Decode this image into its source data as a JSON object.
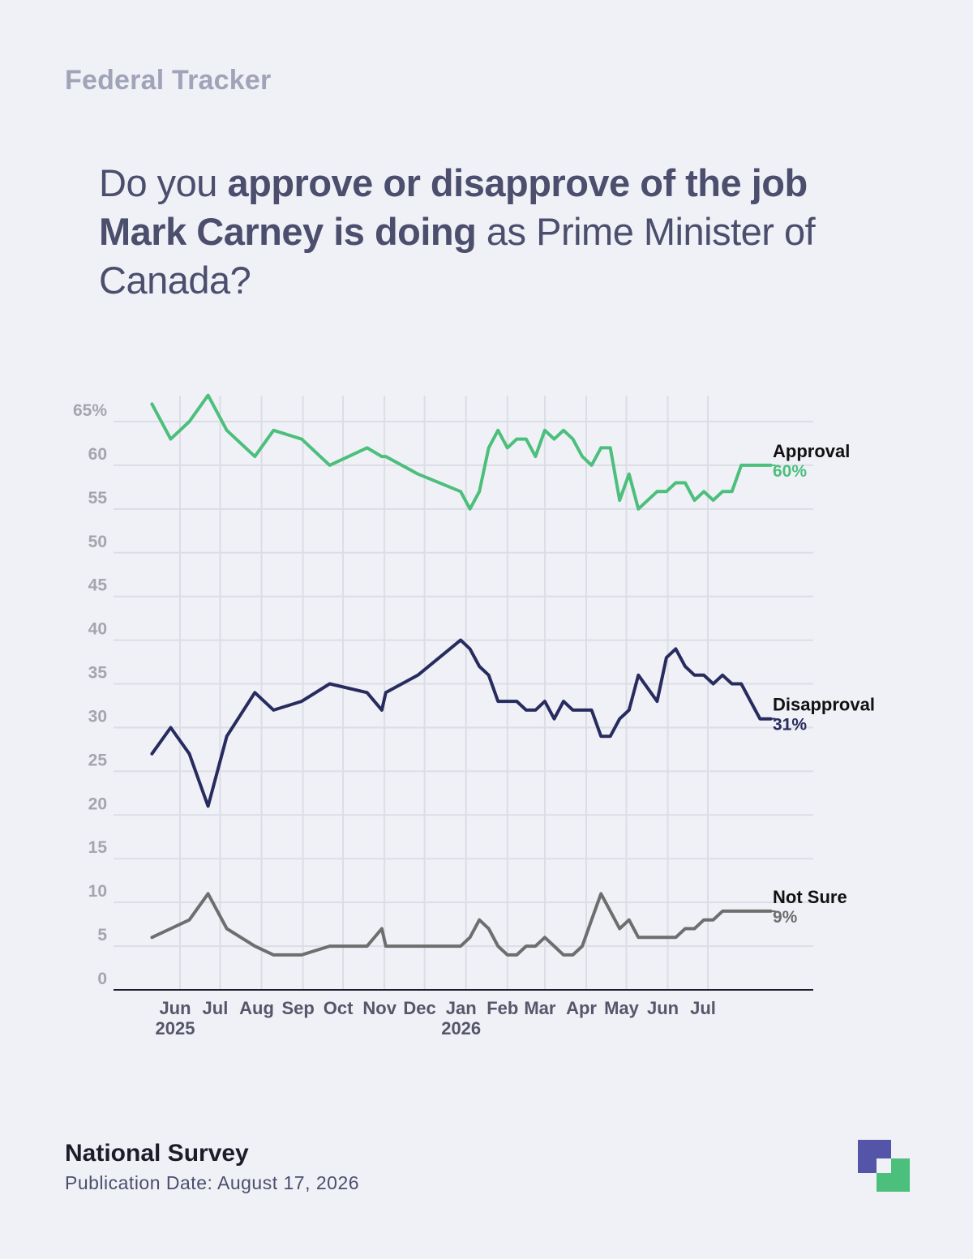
{
  "header": {
    "eyebrow": "Federal Tracker",
    "question_part1": "Do you ",
    "question_bold1": "approve or disapprove of the job Mark Carney is doing",
    "question_part2": " as Prime Minister of Canada?"
  },
  "footer": {
    "title": "National Survey",
    "date": "Publication Date: August 17, 2026"
  },
  "chart_data": {
    "type": "line",
    "ylim": [
      0,
      65
    ],
    "yticks": [
      0,
      5,
      10,
      15,
      20,
      25,
      30,
      35,
      40,
      45,
      50,
      55,
      60,
      65
    ],
    "ytick_labels": [
      "0",
      "5",
      "10",
      "15",
      "20",
      "25",
      "30",
      "35",
      "40",
      "45",
      "50",
      "55",
      "60",
      "65%"
    ],
    "xlim": [
      "2025-05-08",
      "2026-08-17"
    ],
    "xticks": [
      {
        "date": "2025-06-01",
        "label": "Jun",
        "year": "2025"
      },
      {
        "date": "2025-07-01",
        "label": "Jul",
        "year": ""
      },
      {
        "date": "2025-08-01",
        "label": "Aug",
        "year": ""
      },
      {
        "date": "2025-09-01",
        "label": "Sep",
        "year": ""
      },
      {
        "date": "2025-10-01",
        "label": "Oct",
        "year": ""
      },
      {
        "date": "2025-11-01",
        "label": "Nov",
        "year": ""
      },
      {
        "date": "2025-12-01",
        "label": "Dec",
        "year": ""
      },
      {
        "date": "2026-01-01",
        "label": "Jan",
        "year": "2026"
      },
      {
        "date": "2026-02-01",
        "label": "Feb",
        "year": ""
      },
      {
        "date": "2026-03-01",
        "label": "Mar",
        "year": ""
      },
      {
        "date": "2026-04-01",
        "label": "Apr",
        "year": ""
      },
      {
        "date": "2026-05-01",
        "label": "May",
        "year": ""
      },
      {
        "date": "2026-06-01",
        "label": "Jun",
        "year": ""
      },
      {
        "date": "2026-07-01",
        "label": "Jul",
        "year": ""
      }
    ],
    "x": [
      "2025-05-11",
      "2025-05-25",
      "2025-06-08",
      "2025-06-22",
      "2025-07-06",
      "2025-07-27",
      "2025-08-10",
      "2025-08-31",
      "2025-09-21",
      "2025-10-19",
      "2025-10-30",
      "2025-11-02",
      "2025-11-26",
      "2025-12-28",
      "2026-01-04",
      "2026-01-11",
      "2026-01-18",
      "2026-01-25",
      "2026-02-01",
      "2026-02-08",
      "2026-02-15",
      "2026-02-22",
      "2026-03-01",
      "2026-03-08",
      "2026-03-15",
      "2026-03-22",
      "2026-03-29",
      "2026-04-05",
      "2026-04-12",
      "2026-04-19",
      "2026-04-26",
      "2026-05-03",
      "2026-05-10",
      "2026-05-24",
      "2026-05-31",
      "2026-06-07",
      "2026-06-14",
      "2026-06-21",
      "2026-06-28",
      "2026-07-05",
      "2026-07-12",
      "2026-07-19",
      "2026-07-26",
      "2026-08-02",
      "2026-08-09",
      "2026-08-17"
    ],
    "series": [
      {
        "name": "Approval",
        "end_label": "60%",
        "color": "#4cbf7c",
        "values": [
          67,
          63,
          65,
          68,
          64,
          61,
          64,
          63,
          60,
          62,
          61,
          61,
          59,
          57,
          55,
          57,
          62,
          64,
          62,
          63,
          63,
          61,
          64,
          63,
          64,
          63,
          61,
          60,
          62,
          62,
          56,
          59,
          55,
          57,
          57,
          58,
          58,
          56,
          57,
          56,
          57,
          57,
          60,
          60,
          60,
          60
        ]
      },
      {
        "name": "Disapproval",
        "end_label": "31%",
        "color": "#272b5e",
        "values": [
          27,
          30,
          27,
          21,
          29,
          34,
          32,
          33,
          35,
          34,
          32,
          34,
          36,
          40,
          39,
          37,
          36,
          33,
          33,
          33,
          32,
          32,
          33,
          31,
          33,
          32,
          32,
          32,
          29,
          29,
          31,
          32,
          36,
          33,
          38,
          39,
          37,
          36,
          36,
          35,
          36,
          35,
          35,
          33,
          31,
          31
        ]
      },
      {
        "name": "Not Sure",
        "end_label": "9%",
        "color": "#6e6e6e",
        "values": [
          6,
          7,
          8,
          11,
          7,
          5,
          4,
          4,
          5,
          5,
          7,
          5,
          5,
          5,
          6,
          8,
          7,
          5,
          4,
          4,
          5,
          5,
          6,
          5,
          4,
          4,
          5,
          8,
          11,
          9,
          7,
          8,
          6,
          6,
          6,
          6,
          7,
          7,
          8,
          8,
          9,
          9,
          9,
          9,
          9,
          9
        ]
      }
    ]
  }
}
